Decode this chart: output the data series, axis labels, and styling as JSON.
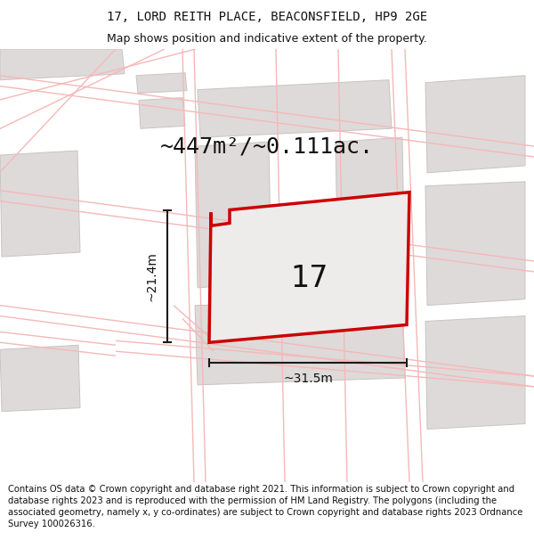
{
  "title_line1": "17, LORD REITH PLACE, BEACONSFIELD, HP9 2GE",
  "title_line2": "Map shows position and indicative extent of the property.",
  "area_label": "~447m²/~0.111ac.",
  "number_label": "17",
  "dim_width": "~31.5m",
  "dim_height": "~21.4m",
  "footer_text": "Contains OS data © Crown copyright and database right 2021. This information is subject to Crown copyright and database rights 2023 and is reproduced with the permission of HM Land Registry. The polygons (including the associated geometry, namely x, y co-ordinates) are subject to Crown copyright and database rights 2023 Ordnance Survey 100026316.",
  "map_bg": "#f7f5f5",
  "title_bg": "#ffffff",
  "footer_bg": "#ffffff",
  "road_color": "#f5b8b8",
  "building_color": "#dedad9",
  "building_outline": "#c8c4c3",
  "property_fill": "#eeebeb",
  "property_outline": "#cc0000",
  "dim_line_color": "#1a1a1a",
  "text_color": "#111111",
  "title_fontsize": 10,
  "subtitle_fontsize": 9,
  "area_fontsize": 18,
  "number_fontsize": 24,
  "dim_fontsize": 10,
  "footer_fontsize": 7.2
}
